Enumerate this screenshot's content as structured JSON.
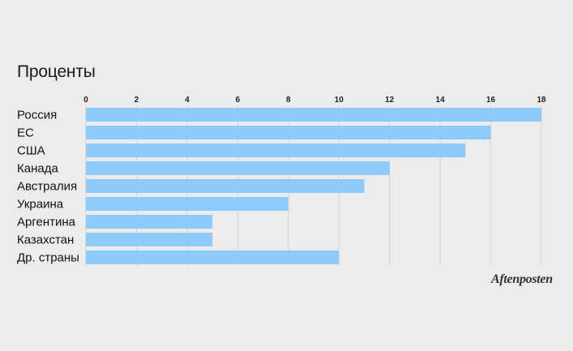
{
  "chart_data": {
    "type": "bar",
    "orientation": "horizontal",
    "title": "Проценты",
    "categories": [
      "Россия",
      "ЕС",
      "США",
      "Канада",
      "Австралия",
      "Украина",
      "Аргентина",
      "Казахстан",
      "Др. страны"
    ],
    "values": [
      18,
      16,
      15,
      12,
      11,
      8,
      5,
      5,
      10
    ],
    "xlim": [
      0,
      18
    ],
    "xticks": [
      0,
      2,
      4,
      6,
      8,
      10,
      12,
      14,
      16,
      18
    ],
    "xaxis_position": "top",
    "grid": true,
    "bar_color": "#8ecbfb",
    "grid_color": "#d2d2d2"
  },
  "source_logo": "Aftenposten"
}
